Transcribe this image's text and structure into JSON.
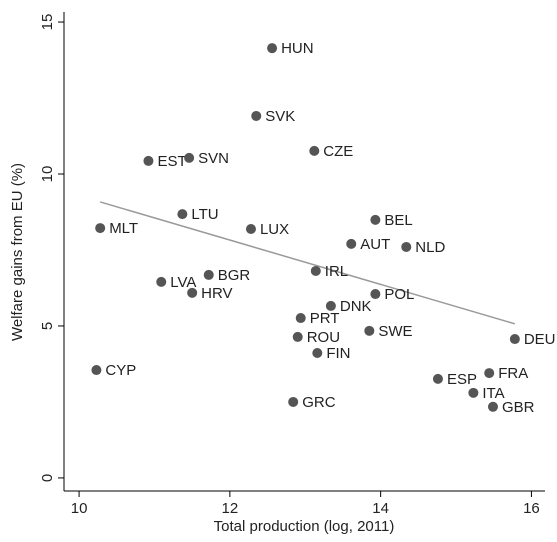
{
  "chart_data": {
    "type": "scatter",
    "xlabel": "Total production (log, 2011)",
    "ylabel": "Welfare gains from EU (%)",
    "labels": [
      "HUN",
      "SVK",
      "CZE",
      "EST",
      "SVN",
      "LTU",
      "MLT",
      "LUX",
      "BEL",
      "AUT",
      "NLD",
      "IRL",
      "LVA",
      "BGR",
      "HRV",
      "POL",
      "DNK",
      "PRT",
      "ROU",
      "SWE",
      "FIN",
      "DEU",
      "CYP",
      "ESP",
      "FRA",
      "ITA",
      "GBR",
      "GRC"
    ],
    "x": [
      12.56,
      12.35,
      13.12,
      10.92,
      11.46,
      11.37,
      10.28,
      12.28,
      13.93,
      13.61,
      14.34,
      13.14,
      11.09,
      11.72,
      11.5,
      13.93,
      13.34,
      12.94,
      12.9,
      13.85,
      13.16,
      15.78,
      10.23,
      14.76,
      15.44,
      15.23,
      15.49,
      12.84
    ],
    "y": [
      14.14,
      11.91,
      10.76,
      10.43,
      10.53,
      8.68,
      8.22,
      8.19,
      8.49,
      7.7,
      7.6,
      6.81,
      6.45,
      6.68,
      6.09,
      6.05,
      5.66,
      5.26,
      4.64,
      4.84,
      4.11,
      4.57,
      3.55,
      3.26,
      3.45,
      2.8,
      2.34,
      2.5
    ],
    "color": "#555555",
    "fit_line": {
      "x": [
        10.28,
        15.78
      ],
      "y": [
        9.08,
        5.07
      ],
      "color": "#9a9a9a"
    },
    "xlim": [
      9.8,
      16.18
    ],
    "ylim": [
      -0.43,
      15.33
    ],
    "xticks": [
      10,
      12,
      14,
      16
    ],
    "yticks": [
      0,
      5,
      10,
      15
    ]
  }
}
